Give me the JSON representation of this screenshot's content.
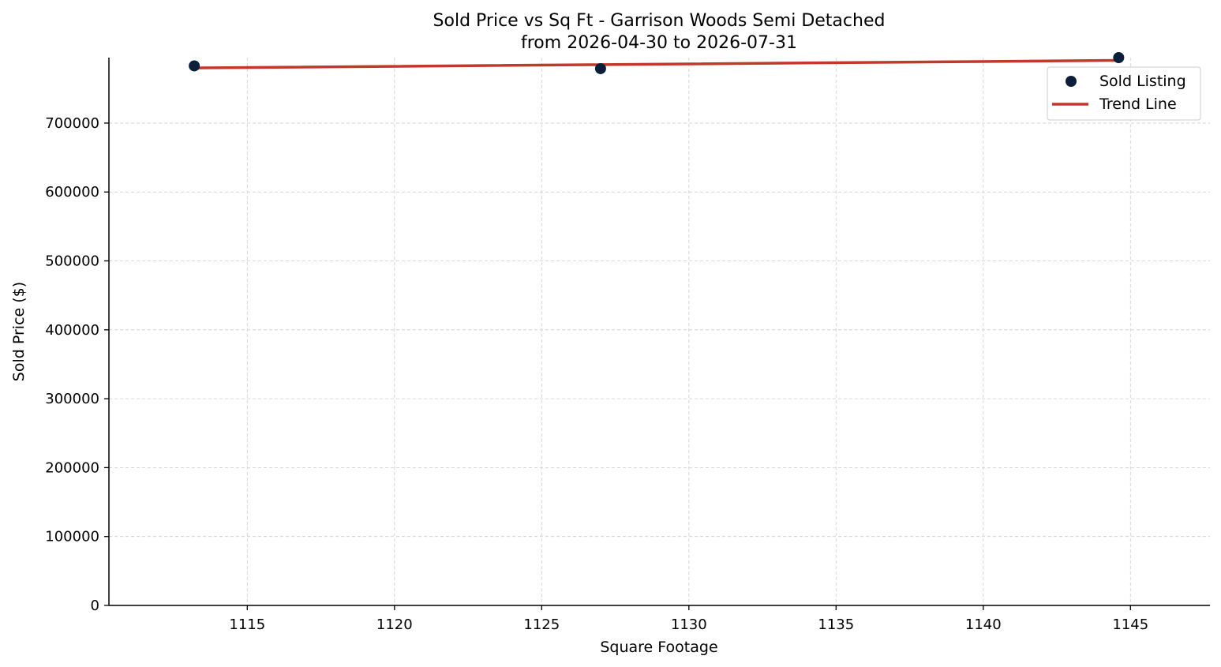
{
  "chart_data": {
    "type": "scatter",
    "title": "Sold Price vs Sq Ft - Garrison Woods Semi Detached",
    "subtitle": "from 2026-04-30 to 2026-07-31",
    "xlabel": "Square Footage",
    "ylabel": "Sold Price ($)",
    "xlim": [
      1110.3,
      1147.7
    ],
    "ylim": [
      0,
      795000
    ],
    "x_ticks": [
      1115,
      1120,
      1125,
      1130,
      1135,
      1140,
      1145
    ],
    "y_ticks": [
      0,
      100000,
      200000,
      300000,
      400000,
      500000,
      600000,
      700000
    ],
    "grid": true,
    "legend_position": "top-right",
    "series": [
      {
        "name": "Sold Listing",
        "type": "scatter",
        "color": "#0b1f3a",
        "points": [
          {
            "x": 1113.2,
            "y": 783000
          },
          {
            "x": 1127.0,
            "y": 779000
          },
          {
            "x": 1144.6,
            "y": 795000
          }
        ]
      },
      {
        "name": "Trend Line",
        "type": "line",
        "color": "#c0392b",
        "points": [
          {
            "x": 1113.2,
            "y": 780000
          },
          {
            "x": 1144.6,
            "y": 791000
          }
        ]
      }
    ]
  }
}
